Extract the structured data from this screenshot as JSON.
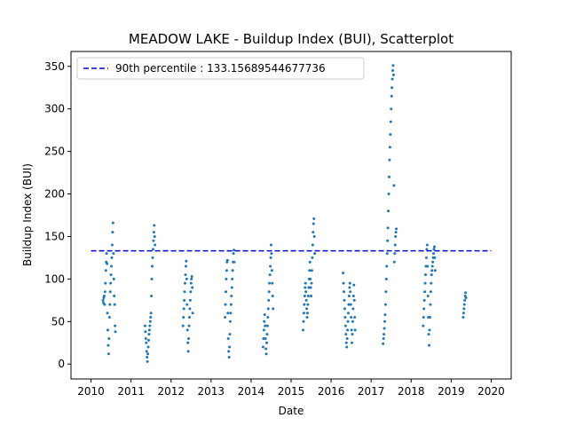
{
  "chart_data": {
    "type": "scatter",
    "title": "MEADOW LAKE - Buildup Index (BUI), Scatterplot",
    "xlabel": "Date",
    "ylabel": "Buildup Index (BUI)",
    "xlim": [
      2009.5,
      2020.5
    ],
    "ylim": [
      -17.5,
      367.5
    ],
    "xticks": [
      2010,
      2011,
      2012,
      2013,
      2014,
      2015,
      2016,
      2017,
      2018,
      2019,
      2020
    ],
    "xtick_labels": [
      "2010",
      "2011",
      "2012",
      "2013",
      "2014",
      "2015",
      "2016",
      "2017",
      "2018",
      "2019",
      "2020"
    ],
    "yticks": [
      0,
      50,
      100,
      150,
      200,
      250,
      300,
      350
    ],
    "ytick_labels": [
      "0",
      "50",
      "100",
      "150",
      "200",
      "250",
      "300",
      "350"
    ],
    "grid": false,
    "legend_position": "top-left",
    "point_color": "#1f77b4",
    "reference_line": {
      "label": "90th percentile : 133.15689544677736",
      "value": 133.15689544677736,
      "x_start": 2010,
      "x_end": 2020,
      "color": "#0000cc",
      "style": "dashed"
    },
    "series": [
      {
        "points": [
          [
            2010.3,
            75
          ],
          [
            2010.31,
            72
          ],
          [
            2010.32,
            78
          ],
          [
            2010.33,
            80
          ],
          [
            2010.34,
            70
          ],
          [
            2010.35,
            85
          ],
          [
            2010.36,
            95
          ],
          [
            2010.37,
            110
          ],
          [
            2010.38,
            120
          ],
          [
            2010.39,
            130
          ],
          [
            2010.4,
            118
          ],
          [
            2010.41,
            60
          ],
          [
            2010.42,
            40
          ],
          [
            2010.43,
            22
          ],
          [
            2010.44,
            12
          ],
          [
            2010.45,
            30
          ],
          [
            2010.46,
            55
          ],
          [
            2010.47,
            70
          ],
          [
            2010.48,
            85
          ],
          [
            2010.49,
            95
          ],
          [
            2010.5,
            105
          ],
          [
            2010.51,
            115
          ],
          [
            2010.52,
            125
          ],
          [
            2010.53,
            140
          ],
          [
            2010.54,
            155
          ],
          [
            2010.55,
            166
          ],
          [
            2010.56,
            130
          ],
          [
            2010.57,
            100
          ],
          [
            2010.58,
            80
          ],
          [
            2010.59,
            70
          ],
          [
            2010.6,
            45
          ],
          [
            2010.61,
            38
          ],
          [
            2011.35,
            45
          ],
          [
            2011.36,
            38
          ],
          [
            2011.37,
            30
          ],
          [
            2011.38,
            25
          ],
          [
            2011.39,
            15
          ],
          [
            2011.4,
            8
          ],
          [
            2011.41,
            3
          ],
          [
            2011.42,
            12
          ],
          [
            2011.43,
            20
          ],
          [
            2011.44,
            28
          ],
          [
            2011.45,
            35
          ],
          [
            2011.46,
            40
          ],
          [
            2011.47,
            45
          ],
          [
            2011.48,
            50
          ],
          [
            2011.49,
            55
          ],
          [
            2011.5,
            60
          ],
          [
            2011.51,
            80
          ],
          [
            2011.52,
            100
          ],
          [
            2011.53,
            115
          ],
          [
            2011.54,
            125
          ],
          [
            2011.55,
            135
          ],
          [
            2011.56,
            145
          ],
          [
            2011.57,
            155
          ],
          [
            2011.58,
            163
          ],
          [
            2011.59,
            150
          ],
          [
            2011.6,
            140
          ],
          [
            2012.3,
            45
          ],
          [
            2012.31,
            55
          ],
          [
            2012.32,
            65
          ],
          [
            2012.33,
            75
          ],
          [
            2012.34,
            85
          ],
          [
            2012.35,
            95
          ],
          [
            2012.36,
            105
          ],
          [
            2012.37,
            115
          ],
          [
            2012.38,
            121
          ],
          [
            2012.39,
            100
          ],
          [
            2012.4,
            70
          ],
          [
            2012.41,
            40
          ],
          [
            2012.42,
            25
          ],
          [
            2012.43,
            15
          ],
          [
            2012.44,
            30
          ],
          [
            2012.45,
            45
          ],
          [
            2012.46,
            55
          ],
          [
            2012.47,
            65
          ],
          [
            2012.48,
            75
          ],
          [
            2012.49,
            85
          ],
          [
            2012.5,
            95
          ],
          [
            2012.51,
            100
          ],
          [
            2012.52,
            103
          ],
          [
            2012.53,
            90
          ],
          [
            2012.54,
            60
          ],
          [
            2013.35,
            55
          ],
          [
            2013.36,
            70
          ],
          [
            2013.37,
            85
          ],
          [
            2013.38,
            100
          ],
          [
            2013.39,
            110
          ],
          [
            2013.4,
            120
          ],
          [
            2013.41,
            122
          ],
          [
            2013.42,
            60
          ],
          [
            2013.43,
            30
          ],
          [
            2013.44,
            15
          ],
          [
            2013.45,
            8
          ],
          [
            2013.46,
            20
          ],
          [
            2013.47,
            35
          ],
          [
            2013.48,
            50
          ],
          [
            2013.49,
            60
          ],
          [
            2013.5,
            70
          ],
          [
            2013.51,
            80
          ],
          [
            2013.52,
            90
          ],
          [
            2013.53,
            100
          ],
          [
            2013.54,
            110
          ],
          [
            2013.55,
            120
          ],
          [
            2013.56,
            130
          ],
          [
            2013.57,
            134
          ],
          [
            2013.58,
            120
          ],
          [
            2014.3,
            20
          ],
          [
            2014.31,
            30
          ],
          [
            2014.32,
            40
          ],
          [
            2014.33,
            50
          ],
          [
            2014.34,
            58
          ],
          [
            2014.35,
            45
          ],
          [
            2014.36,
            30
          ],
          [
            2014.37,
            18
          ],
          [
            2014.38,
            12
          ],
          [
            2014.39,
            25
          ],
          [
            2014.4,
            35
          ],
          [
            2014.41,
            45
          ],
          [
            2014.42,
            55
          ],
          [
            2014.43,
            65
          ],
          [
            2014.44,
            75
          ],
          [
            2014.45,
            85
          ],
          [
            2014.46,
            95
          ],
          [
            2014.47,
            105
          ],
          [
            2014.48,
            115
          ],
          [
            2014.49,
            125
          ],
          [
            2014.5,
            140
          ],
          [
            2014.51,
            130
          ],
          [
            2014.52,
            110
          ],
          [
            2014.53,
            95
          ],
          [
            2014.54,
            80
          ],
          [
            2014.55,
            65
          ],
          [
            2015.3,
            40
          ],
          [
            2015.31,
            50
          ],
          [
            2015.32,
            60
          ],
          [
            2015.33,
            70
          ],
          [
            2015.34,
            80
          ],
          [
            2015.35,
            90
          ],
          [
            2015.36,
            95
          ],
          [
            2015.37,
            85
          ],
          [
            2015.38,
            75
          ],
          [
            2015.39,
            65
          ],
          [
            2015.4,
            55
          ],
          [
            2015.41,
            60
          ],
          [
            2015.42,
            70
          ],
          [
            2015.43,
            80
          ],
          [
            2015.44,
            90
          ],
          [
            2015.45,
            100
          ],
          [
            2015.46,
            110
          ],
          [
            2015.47,
            120
          ],
          [
            2015.48,
            100
          ],
          [
            2015.49,
            90
          ],
          [
            2015.5,
            80
          ],
          [
            2015.51,
            95
          ],
          [
            2015.52,
            110
          ],
          [
            2015.53,
            125
          ],
          [
            2015.54,
            140
          ],
          [
            2015.55,
            155
          ],
          [
            2015.56,
            165
          ],
          [
            2015.57,
            171
          ],
          [
            2015.58,
            150
          ],
          [
            2015.59,
            130
          ],
          [
            2016.3,
            107
          ],
          [
            2016.31,
            95
          ],
          [
            2016.32,
            85
          ],
          [
            2016.33,
            75
          ],
          [
            2016.34,
            65
          ],
          [
            2016.35,
            55
          ],
          [
            2016.36,
            45
          ],
          [
            2016.37,
            35
          ],
          [
            2016.38,
            25
          ],
          [
            2016.39,
            20
          ],
          [
            2016.4,
            30
          ],
          [
            2016.41,
            40
          ],
          [
            2016.42,
            50
          ],
          [
            2016.43,
            60
          ],
          [
            2016.44,
            70
          ],
          [
            2016.45,
            80
          ],
          [
            2016.46,
            90
          ],
          [
            2016.47,
            95
          ],
          [
            2016.48,
            85
          ],
          [
            2016.49,
            70
          ],
          [
            2016.5,
            55
          ],
          [
            2016.51,
            40
          ],
          [
            2016.52,
            25
          ],
          [
            2016.53,
            35
          ],
          [
            2016.54,
            50
          ],
          [
            2016.55,
            65
          ],
          [
            2016.56,
            80
          ],
          [
            2016.57,
            93
          ],
          [
            2016.58,
            75
          ],
          [
            2016.59,
            55
          ],
          [
            2016.6,
            40
          ],
          [
            2017.3,
            24
          ],
          [
            2017.31,
            30
          ],
          [
            2017.32,
            35
          ],
          [
            2017.33,
            42
          ],
          [
            2017.34,
            50
          ],
          [
            2017.35,
            58
          ],
          [
            2017.36,
            70
          ],
          [
            2017.37,
            85
          ],
          [
            2017.38,
            100
          ],
          [
            2017.39,
            115
          ],
          [
            2017.4,
            130
          ],
          [
            2017.41,
            145
          ],
          [
            2017.42,
            160
          ],
          [
            2017.43,
            180
          ],
          [
            2017.44,
            200
          ],
          [
            2017.45,
            220
          ],
          [
            2017.46,
            240
          ],
          [
            2017.47,
            255
          ],
          [
            2017.48,
            270
          ],
          [
            2017.49,
            285
          ],
          [
            2017.5,
            300
          ],
          [
            2017.51,
            315
          ],
          [
            2017.52,
            325
          ],
          [
            2017.53,
            335
          ],
          [
            2017.54,
            345
          ],
          [
            2017.55,
            351
          ],
          [
            2017.56,
            340
          ],
          [
            2017.57,
            210
          ],
          [
            2017.58,
            120
          ],
          [
            2017.59,
            130
          ],
          [
            2017.6,
            140
          ],
          [
            2017.61,
            150
          ],
          [
            2017.62,
            155
          ],
          [
            2017.63,
            159
          ],
          [
            2018.3,
            45
          ],
          [
            2018.31,
            55
          ],
          [
            2018.32,
            65
          ],
          [
            2018.33,
            75
          ],
          [
            2018.34,
            85
          ],
          [
            2018.35,
            95
          ],
          [
            2018.36,
            105
          ],
          [
            2018.37,
            115
          ],
          [
            2018.38,
            125
          ],
          [
            2018.39,
            135
          ],
          [
            2018.4,
            140
          ],
          [
            2018.41,
            115
          ],
          [
            2018.42,
            80
          ],
          [
            2018.43,
            55
          ],
          [
            2018.44,
            35
          ],
          [
            2018.45,
            22
          ],
          [
            2018.46,
            40
          ],
          [
            2018.47,
            55
          ],
          [
            2018.48,
            70
          ],
          [
            2018.49,
            85
          ],
          [
            2018.5,
            95
          ],
          [
            2018.51,
            105
          ],
          [
            2018.52,
            110
          ],
          [
            2018.53,
            115
          ],
          [
            2018.54,
            120
          ],
          [
            2018.55,
            125
          ],
          [
            2018.56,
            130
          ],
          [
            2018.57,
            135
          ],
          [
            2018.58,
            138
          ],
          [
            2018.59,
            125
          ],
          [
            2018.6,
            110
          ],
          [
            2019.3,
            55
          ],
          [
            2019.31,
            60
          ],
          [
            2019.32,
            65
          ],
          [
            2019.33,
            70
          ],
          [
            2019.34,
            75
          ],
          [
            2019.35,
            80
          ],
          [
            2019.36,
            84
          ],
          [
            2019.37,
            78
          ]
        ]
      }
    ]
  }
}
